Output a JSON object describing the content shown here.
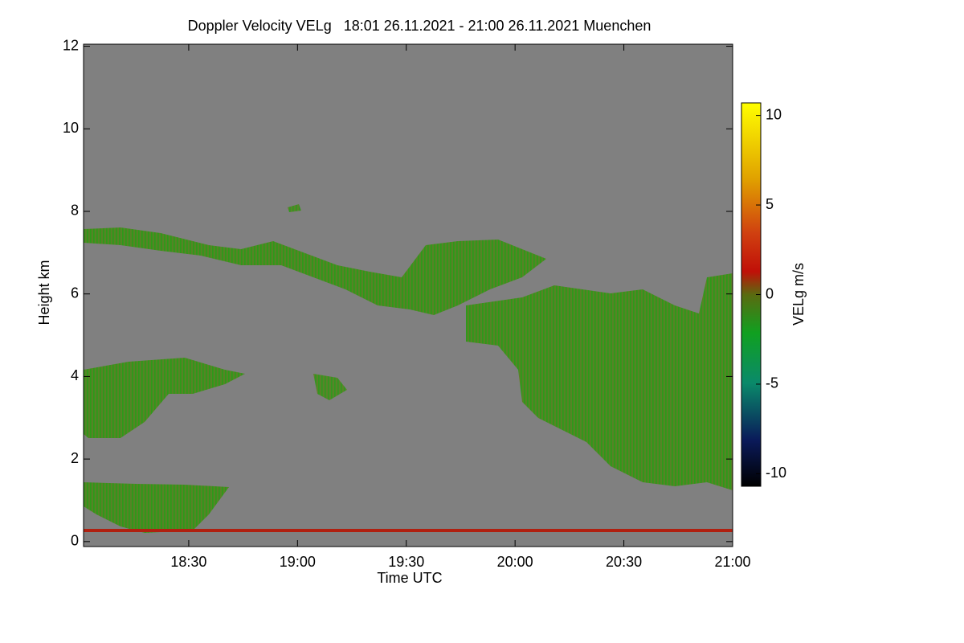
{
  "chart_data": {
    "type": "heatmap",
    "title": "Doppler Velocity VELg   18:01 26.11.2021 - 21:00 26.11.2021 Muenchen",
    "x_label": "Time UTC",
    "y_label": "Height km",
    "colorbar_label": "VELg m/s",
    "xlim": [
      1081,
      1260
    ],
    "xticks": [
      {
        "value": 1110,
        "label": "18:30"
      },
      {
        "value": 1140,
        "label": "19:00"
      },
      {
        "value": 1170,
        "label": "19:30"
      },
      {
        "value": 1200,
        "label": "20:00"
      },
      {
        "value": 1230,
        "label": "20:30"
      },
      {
        "value": 1260,
        "label": "21:00"
      }
    ],
    "ylim": [
      -0.12,
      12.05
    ],
    "yticks": [
      0,
      2,
      4,
      6,
      8,
      10,
      12
    ],
    "clim": [
      -10.7,
      10.7
    ],
    "cticks": [
      10,
      5,
      0,
      -5,
      -10
    ],
    "background": "#808080"
  }
}
